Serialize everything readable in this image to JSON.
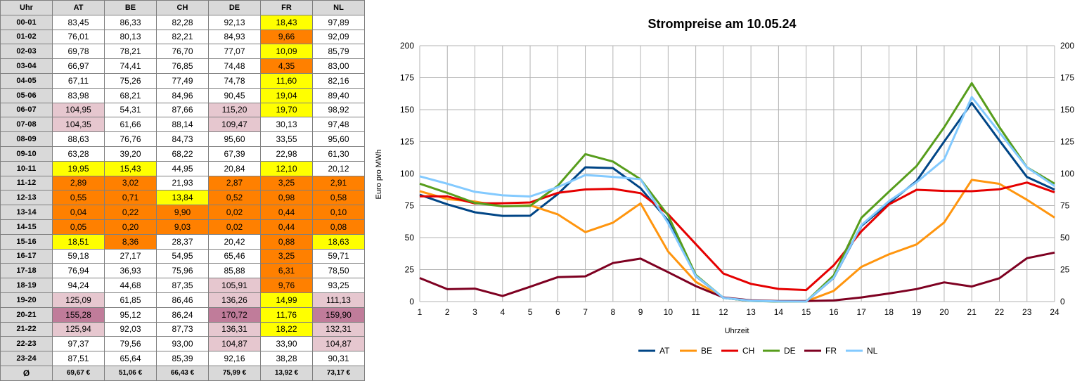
{
  "table": {
    "header": [
      "Uhr",
      "AT",
      "BE",
      "CH",
      "DE",
      "FR",
      "NL"
    ],
    "rows": [
      {
        "hour": "00-01",
        "values": [
          "83,45",
          "86,33",
          "82,28",
          "92,13",
          "18,43",
          "97,89"
        ],
        "colors": [
          "",
          "",
          "",
          "",
          "yellow",
          ""
        ]
      },
      {
        "hour": "01-02",
        "values": [
          "76,01",
          "80,13",
          "82,21",
          "84,93",
          "9,66",
          "92,09"
        ],
        "colors": [
          "",
          "",
          "",
          "",
          "orange",
          ""
        ]
      },
      {
        "hour": "02-03",
        "values": [
          "69,78",
          "78,21",
          "76,70",
          "77,07",
          "10,09",
          "85,79"
        ],
        "colors": [
          "",
          "",
          "",
          "",
          "yellow",
          ""
        ]
      },
      {
        "hour": "03-04",
        "values": [
          "66,97",
          "74,41",
          "76,85",
          "74,48",
          "4,35",
          "83,00"
        ],
        "colors": [
          "",
          "",
          "",
          "",
          "orange",
          ""
        ]
      },
      {
        "hour": "04-05",
        "values": [
          "67,11",
          "75,26",
          "77,49",
          "74,78",
          "11,60",
          "82,16"
        ],
        "colors": [
          "",
          "",
          "",
          "",
          "yellow",
          ""
        ]
      },
      {
        "hour": "05-06",
        "values": [
          "83,98",
          "68,21",
          "84,96",
          "90,45",
          "19,04",
          "89,40"
        ],
        "colors": [
          "",
          "",
          "",
          "",
          "yellow",
          ""
        ]
      },
      {
        "hour": "06-07",
        "values": [
          "104,95",
          "54,31",
          "87,66",
          "115,20",
          "19,70",
          "98,92"
        ],
        "colors": [
          "pink",
          "",
          "",
          "pink",
          "yellow",
          ""
        ]
      },
      {
        "hour": "07-08",
        "values": [
          "104,35",
          "61,66",
          "88,14",
          "109,47",
          "30,13",
          "97,48"
        ],
        "colors": [
          "pink",
          "",
          "",
          "pink",
          "",
          ""
        ]
      },
      {
        "hour": "08-09",
        "values": [
          "88,63",
          "76,76",
          "84,73",
          "95,60",
          "33,55",
          "95,60"
        ],
        "colors": [
          "",
          "",
          "",
          "",
          "",
          ""
        ]
      },
      {
        "hour": "09-10",
        "values": [
          "63,28",
          "39,20",
          "68,22",
          "67,39",
          "22,98",
          "61,30"
        ],
        "colors": [
          "",
          "",
          "",
          "",
          "",
          ""
        ]
      },
      {
        "hour": "10-11",
        "values": [
          "19,95",
          "15,43",
          "44,95",
          "20,84",
          "12,10",
          "20,12"
        ],
        "colors": [
          "yellow",
          "yellow",
          "",
          "",
          "yellow",
          ""
        ]
      },
      {
        "hour": "11-12",
        "values": [
          "2,89",
          "3,02",
          "21,93",
          "2,87",
          "3,25",
          "2,91"
        ],
        "colors": [
          "orange",
          "orange",
          "",
          "orange",
          "orange",
          "orange"
        ]
      },
      {
        "hour": "12-13",
        "values": [
          "0,55",
          "0,71",
          "13,84",
          "0,52",
          "0,98",
          "0,58"
        ],
        "colors": [
          "orange",
          "orange",
          "yellow",
          "orange",
          "orange",
          "orange"
        ]
      },
      {
        "hour": "13-14",
        "values": [
          "0,04",
          "0,22",
          "9,90",
          "0,02",
          "0,44",
          "0,10"
        ],
        "colors": [
          "orange",
          "orange",
          "orange",
          "orange",
          "orange",
          "orange"
        ]
      },
      {
        "hour": "14-15",
        "values": [
          "0,05",
          "0,20",
          "9,03",
          "0,02",
          "0,44",
          "0,08"
        ],
        "colors": [
          "orange",
          "orange",
          "orange",
          "orange",
          "orange",
          "orange"
        ]
      },
      {
        "hour": "15-16",
        "values": [
          "18,51",
          "8,36",
          "28,37",
          "20,42",
          "0,88",
          "18,63"
        ],
        "colors": [
          "yellow",
          "orange",
          "",
          "",
          "orange",
          "yellow"
        ]
      },
      {
        "hour": "16-17",
        "values": [
          "59,18",
          "27,17",
          "54,95",
          "65,46",
          "3,25",
          "59,71"
        ],
        "colors": [
          "",
          "",
          "",
          "",
          "orange",
          ""
        ]
      },
      {
        "hour": "17-18",
        "values": [
          "76,94",
          "36,93",
          "75,96",
          "85,88",
          "6,31",
          "78,50"
        ],
        "colors": [
          "",
          "",
          "",
          "",
          "orange",
          ""
        ]
      },
      {
        "hour": "18-19",
        "values": [
          "94,24",
          "44,68",
          "87,35",
          "105,91",
          "9,76",
          "93,25"
        ],
        "colors": [
          "",
          "",
          "",
          "pink",
          "orange",
          ""
        ]
      },
      {
        "hour": "19-20",
        "values": [
          "125,09",
          "61,85",
          "86,46",
          "136,26",
          "14,99",
          "111,13"
        ],
        "colors": [
          "pink",
          "",
          "",
          "pink",
          "yellow",
          "pink"
        ]
      },
      {
        "hour": "20-21",
        "values": [
          "155,28",
          "95,12",
          "86,24",
          "170,72",
          "11,76",
          "159,90"
        ],
        "colors": [
          "purple",
          "",
          "",
          "purple",
          "yellow",
          "purple"
        ]
      },
      {
        "hour": "21-22",
        "values": [
          "125,94",
          "92,03",
          "87,73",
          "136,31",
          "18,22",
          "132,31"
        ],
        "colors": [
          "pink",
          "",
          "",
          "pink",
          "yellow",
          "pink"
        ]
      },
      {
        "hour": "22-23",
        "values": [
          "97,37",
          "79,56",
          "93,00",
          "104,87",
          "33,90",
          "104,87"
        ],
        "colors": [
          "",
          "",
          "",
          "pink",
          "",
          "pink"
        ]
      },
      {
        "hour": "23-24",
        "values": [
          "87,51",
          "65,64",
          "85,39",
          "92,16",
          "38,28",
          "90,31"
        ],
        "colors": [
          "",
          "",
          "",
          "",
          "",
          ""
        ]
      }
    ],
    "average_label": "Ø",
    "averages": [
      "69,67 €",
      "51,06 €",
      "66,43 €",
      "75,99 €",
      "13,92 €",
      "73,17 €"
    ]
  },
  "colors": {
    "yellow": "#ffff00",
    "orange": "#ff8000",
    "pink": "#e6c7cf",
    "purple": "#c07c9a",
    "header": "#d9d9d9"
  },
  "chart_data": {
    "type": "line",
    "title": "Strompreise am 10.05.24",
    "xlabel": "Uhrzeit",
    "ylabel": "Euro pro MWh",
    "x": [
      1,
      2,
      3,
      4,
      5,
      6,
      7,
      8,
      9,
      10,
      11,
      12,
      13,
      14,
      15,
      16,
      17,
      18,
      19,
      20,
      21,
      22,
      23,
      24
    ],
    "ylim": [
      0,
      200
    ],
    "yticks": [
      0,
      25,
      50,
      75,
      100,
      125,
      150,
      175,
      200
    ],
    "grid": true,
    "legend": "bottom",
    "series": [
      {
        "name": "AT",
        "color": "#004586",
        "values": [
          83.45,
          76.01,
          69.78,
          66.97,
          67.11,
          83.98,
          104.95,
          104.35,
          88.63,
          63.28,
          19.95,
          2.89,
          0.55,
          0.04,
          0.05,
          18.51,
          59.18,
          76.94,
          94.24,
          125.09,
          155.28,
          125.94,
          97.37,
          87.51
        ]
      },
      {
        "name": "BE",
        "color": "#ff950e",
        "values": [
          86.33,
          80.13,
          78.21,
          74.41,
          75.26,
          68.21,
          54.31,
          61.66,
          76.76,
          39.2,
          15.43,
          3.02,
          0.71,
          0.22,
          0.2,
          8.36,
          27.17,
          36.93,
          44.68,
          61.85,
          95.12,
          92.03,
          79.56,
          65.64
        ]
      },
      {
        "name": "CH",
        "color": "#e50000",
        "values": [
          82.28,
          82.21,
          76.7,
          76.85,
          77.49,
          84.96,
          87.66,
          88.14,
          84.73,
          68.22,
          44.95,
          21.93,
          13.84,
          9.9,
          9.03,
          28.37,
          54.95,
          75.96,
          87.35,
          86.46,
          86.24,
          87.73,
          93.0,
          85.39
        ]
      },
      {
        "name": "DE",
        "color": "#579d1c",
        "values": [
          92.13,
          84.93,
          77.07,
          74.48,
          74.78,
          90.45,
          115.2,
          109.47,
          95.6,
          67.39,
          20.84,
          2.87,
          0.52,
          0.02,
          0.02,
          20.42,
          65.46,
          85.88,
          105.91,
          136.26,
          170.72,
          136.31,
          104.87,
          92.16
        ]
      },
      {
        "name": "FR",
        "color": "#7e0021",
        "values": [
          18.43,
          9.66,
          10.09,
          4.35,
          11.6,
          19.04,
          19.7,
          30.13,
          33.55,
          22.98,
          12.1,
          3.25,
          0.98,
          0.44,
          0.44,
          0.88,
          3.25,
          6.31,
          9.76,
          14.99,
          11.76,
          18.22,
          33.9,
          38.28
        ]
      },
      {
        "name": "NL",
        "color": "#83caff",
        "values": [
          97.89,
          92.09,
          85.79,
          83.0,
          82.16,
          89.4,
          98.92,
          97.48,
          95.6,
          61.3,
          20.12,
          2.91,
          0.58,
          0.1,
          0.08,
          18.63,
          59.71,
          78.5,
          93.25,
          111.13,
          159.9,
          132.31,
          104.87,
          90.31
        ]
      }
    ]
  }
}
